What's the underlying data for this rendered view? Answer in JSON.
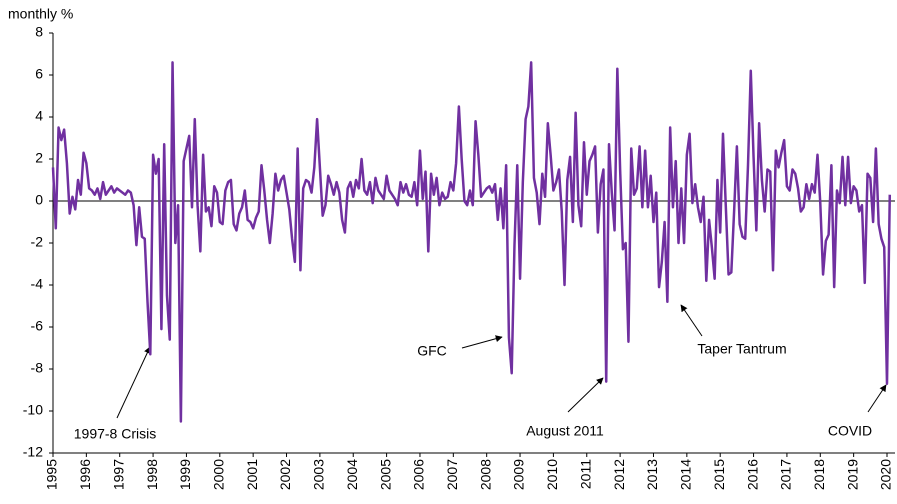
{
  "chart_data": {
    "type": "line",
    "y_label": "monthly %",
    "categories": [
      "1995",
      null,
      null,
      null,
      null,
      null,
      null,
      null,
      null,
      null,
      null,
      null,
      "1996",
      null,
      null,
      null,
      null,
      null,
      null,
      null,
      null,
      null,
      null,
      null,
      "1997",
      null,
      null,
      null,
      null,
      null,
      null,
      null,
      null,
      null,
      null,
      null,
      "1998",
      null,
      null,
      null,
      null,
      null,
      null,
      null,
      null,
      null,
      null,
      null,
      "1999",
      null,
      null,
      null,
      null,
      null,
      null,
      null,
      null,
      null,
      null,
      null,
      "2000",
      null,
      null,
      null,
      null,
      null,
      null,
      null,
      null,
      null,
      null,
      null,
      "2001",
      null,
      null,
      null,
      null,
      null,
      null,
      null,
      null,
      null,
      null,
      null,
      "2002",
      null,
      null,
      null,
      null,
      null,
      null,
      null,
      null,
      null,
      null,
      null,
      "2003",
      null,
      null,
      null,
      null,
      null,
      null,
      null,
      null,
      null,
      null,
      null,
      "2004",
      null,
      null,
      null,
      null,
      null,
      null,
      null,
      null,
      null,
      null,
      null,
      "2005",
      null,
      null,
      null,
      null,
      null,
      null,
      null,
      null,
      null,
      null,
      null,
      "2006",
      null,
      null,
      null,
      null,
      null,
      null,
      null,
      null,
      null,
      null,
      null,
      "2007",
      null,
      null,
      null,
      null,
      null,
      null,
      null,
      null,
      null,
      null,
      null,
      "2008",
      null,
      null,
      null,
      null,
      null,
      null,
      null,
      null,
      null,
      null,
      null,
      "2009",
      null,
      null,
      null,
      null,
      null,
      null,
      null,
      null,
      null,
      null,
      null,
      "2010",
      null,
      null,
      null,
      null,
      null,
      null,
      null,
      null,
      null,
      null,
      null,
      "2011",
      null,
      null,
      null,
      null,
      null,
      null,
      null,
      null,
      null,
      null,
      null,
      "2012",
      null,
      null,
      null,
      null,
      null,
      null,
      null,
      null,
      null,
      null,
      null,
      "2013",
      null,
      null,
      null,
      null,
      null,
      null,
      null,
      null,
      null,
      null,
      null,
      "2014",
      null,
      null,
      null,
      null,
      null,
      null,
      null,
      null,
      null,
      null,
      null,
      "2015",
      null,
      null,
      null,
      null,
      null,
      null,
      null,
      null,
      null,
      null,
      null,
      "2016",
      null,
      null,
      null,
      null,
      null,
      null,
      null,
      null,
      null,
      null,
      null,
      "2017",
      null,
      null,
      null,
      null,
      null,
      null,
      null,
      null,
      null,
      null,
      null,
      "2018",
      null,
      null,
      null,
      null,
      null,
      null,
      null,
      null,
      null,
      null,
      null,
      "2019",
      null,
      null,
      null,
      null,
      null,
      null,
      null,
      null,
      null,
      null,
      null,
      "2020",
      null
    ],
    "series": [
      {
        "color": "#7030a0",
        "values": [
          1.6,
          -1.3,
          3.5,
          2.9,
          3.4,
          1.8,
          -0.6,
          0.2,
          -0.4,
          1.0,
          0.3,
          2.3,
          1.8,
          0.6,
          0.5,
          0.3,
          0.6,
          0.1,
          0.9,
          0.3,
          0.5,
          0.7,
          0.4,
          0.6,
          0.5,
          0.4,
          0.3,
          0.5,
          0.4,
          -0.2,
          -2.1,
          -0.3,
          -1.7,
          -1.8,
          -4.8,
          -7.3,
          2.2,
          1.3,
          2.0,
          -6.1,
          2.7,
          -4.5,
          -6.6,
          6.6,
          -2.0,
          -0.2,
          -10.5,
          1.9,
          2.5,
          3.1,
          -0.3,
          3.9,
          -0.2,
          -2.4,
          2.2,
          -0.5,
          -0.3,
          -1.2,
          0.7,
          0.4,
          -1.0,
          -1.1,
          0.5,
          0.9,
          1.0,
          -1.1,
          -1.4,
          -0.6,
          -0.3,
          0.5,
          -0.9,
          -1.0,
          -1.3,
          -0.8,
          -0.5,
          1.7,
          0.5,
          -0.9,
          -2.0,
          -0.6,
          1.3,
          0.5,
          1.0,
          1.2,
          0.4,
          -0.4,
          -1.8,
          -2.9,
          2.5,
          -3.3,
          0.6,
          1.0,
          0.9,
          0.4,
          1.6,
          3.9,
          1.6,
          -0.7,
          -0.2,
          1.2,
          0.8,
          0.3,
          0.9,
          0.4,
          -0.9,
          -1.5,
          0.6,
          0.9,
          0.2,
          1.0,
          0.6,
          2.0,
          0.5,
          0.3,
          0.9,
          -0.1,
          1.1,
          0.5,
          0.3,
          0.1,
          1.2,
          0.5,
          0.3,
          0.1,
          -0.2,
          0.9,
          0.4,
          0.8,
          0.3,
          0.2,
          0.9,
          -0.2,
          2.4,
          0.1,
          1.4,
          -2.4,
          1.3,
          0.3,
          1.1,
          -0.2,
          0.4,
          0.1,
          0.2,
          0.9,
          0.5,
          1.8,
          4.5,
          2.0,
          0.0,
          -0.2,
          0.5,
          -0.2,
          3.8,
          2.2,
          0.2,
          0.4,
          0.6,
          0.7,
          0.4,
          0.8,
          -0.9,
          0.6,
          -1.3,
          1.7,
          -6.5,
          -8.2,
          -2.1,
          1.7,
          -3.7,
          0.9,
          3.9,
          4.5,
          6.6,
          1.1,
          0.4,
          -1.1,
          1.3,
          0.2,
          3.7,
          2.2,
          0.5,
          0.9,
          1.5,
          -0.5,
          -4.0,
          1.0,
          2.1,
          -1.0,
          4.2,
          -0.2,
          -1.2,
          2.8,
          0.3,
          1.9,
          2.2,
          2.6,
          -1.5,
          0.8,
          1.5,
          -8.6,
          2.7,
          0.4,
          -1.4,
          6.3,
          1.5,
          -2.3,
          -2.0,
          -6.7,
          2.5,
          0.3,
          0.6,
          2.6,
          -0.3,
          2.4,
          -0.3,
          1.2,
          -1.0,
          0.4,
          -4.1,
          -2.9,
          -1.0,
          -4.8,
          3.5,
          -0.3,
          1.9,
          -2.0,
          0.6,
          -2.0,
          2.2,
          3.2,
          -0.1,
          0.8,
          -0.3,
          -1.0,
          0.2,
          -3.8,
          -0.9,
          -2.2,
          -3.7,
          1.0,
          -1.5,
          3.2,
          -0.2,
          -3.5,
          -3.4,
          -0.5,
          2.6,
          -1.1,
          -1.7,
          -1.8,
          1.7,
          6.2,
          2.1,
          -1.4,
          3.7,
          1.0,
          -0.5,
          1.5,
          1.4,
          -3.3,
          2.4,
          1.6,
          2.3,
          2.9,
          0.7,
          0.5,
          1.5,
          1.3,
          0.6,
          -0.5,
          -0.3,
          0.8,
          0.1,
          0.8,
          0.4,
          2.2,
          -0.1,
          -3.5,
          -1.9,
          -1.6,
          1.7,
          -4.1,
          0.5,
          -0.1,
          2.1,
          -0.2,
          2.1,
          -0.1,
          0.7,
          0.5,
          -0.5,
          -0.2,
          -3.9,
          1.3,
          1.1,
          -1.0,
          2.5,
          -1.1,
          -1.8,
          -2.2,
          -8.7,
          0.3
        ]
      }
    ],
    "ylim": [
      -12,
      8
    ],
    "yticks": [
      -12,
      -10,
      -8,
      -6,
      -4,
      -2,
      0,
      2,
      4,
      6,
      8
    ],
    "annotations": [
      {
        "text": "1997-8 Crisis"
      },
      {
        "text": "GFC"
      },
      {
        "text": "August 2011"
      },
      {
        "text": "Taper Tantrum"
      },
      {
        "text": "COVID"
      }
    ]
  }
}
